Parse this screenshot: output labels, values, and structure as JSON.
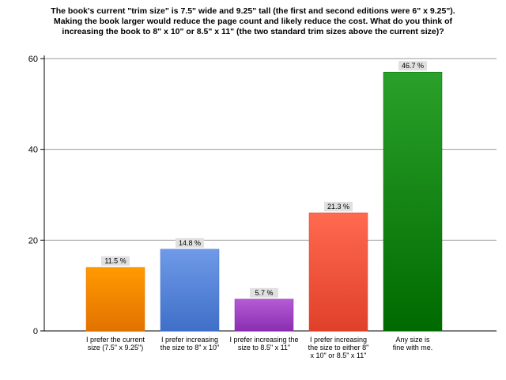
{
  "chart_data": {
    "type": "bar",
    "title": "The book's current \"trim size\" is 7.5\" wide and 9.25\" tall (the first and second editions were 6\" x 9.25\").\nMaking the book larger would reduce the page count and likely reduce the cost. What do you think of\nincreasing the book to 8\" x 10\" or 8.5\" x 11\" (the two standard trim sizes above the current size)?",
    "xlabel": "",
    "ylabel": "",
    "ylim": [
      0,
      60
    ],
    "yticks": [
      0,
      20,
      40,
      60
    ],
    "grid": true,
    "legend": "none",
    "categories": [
      [
        "I prefer the current",
        "size (7.5\" x 9.25\")"
      ],
      [
        "I prefer increasing",
        "the size to 8\" x 10\""
      ],
      [
        "I prefer increasing the",
        "size to 8.5\" x 11\""
      ],
      [
        "I prefer increasing",
        "the size to either 8\"",
        "x 10\" or 8.5\" x 11\""
      ],
      [
        "Any size is",
        "fine with me."
      ]
    ],
    "values": [
      14,
      18,
      7,
      26,
      57
    ],
    "data_labels": [
      "11.5 %",
      "14.8 %",
      "5.7 %",
      "21.3 %",
      "46.7 %"
    ],
    "colors": [
      [
        "#ff9a00",
        "#e27200"
      ],
      [
        "#6f9ae8",
        "#3f6fc8"
      ],
      [
        "#b55bd6",
        "#8a2eb0"
      ],
      [
        "#ff6a4f",
        "#e0402a"
      ],
      [
        "#2aa12a",
        "#006a00"
      ]
    ]
  }
}
